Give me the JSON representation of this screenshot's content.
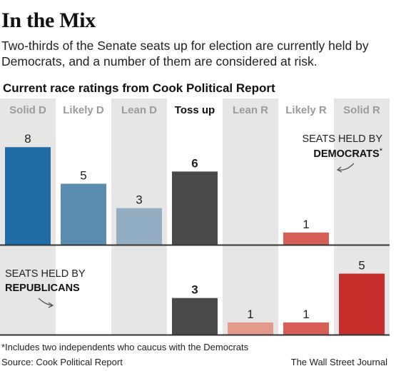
{
  "title": "In the Mix",
  "subtitle": "Two-thirds of the Senate seats up for election are currently held by Democrats, and a number of them are considered at risk.",
  "chart_heading": "Current race ratings from Cook Political Report",
  "footnote": "*Includes two independents who caucus with the Democrats",
  "source": "Source: Cook Political Report",
  "credit": "The Wall Street Journal",
  "chart_data": {
    "type": "bar",
    "categories": [
      "Solid D",
      "Likely D",
      "Lean D",
      "Toss up",
      "Lean R",
      "Likely R",
      "Solid R"
    ],
    "highlight_category": "Toss up",
    "series": [
      {
        "name": "SEATS HELD BY DEMOCRATS",
        "label_prefix": "SEATS HELD BY",
        "label_emphasis": "DEMOCRATS",
        "label_mark": "*",
        "values": [
          8,
          5,
          3,
          6,
          0,
          1,
          0
        ],
        "colors": [
          "#1f6ea8",
          "#5a8db0",
          "#93adc2",
          "#4a4a4a",
          null,
          "#d85f58",
          null
        ]
      },
      {
        "name": "SEATS HELD BY REPUBLICANS",
        "label_prefix": "SEATS HELD BY",
        "label_emphasis": "REPUBLICANS",
        "label_mark": "",
        "values": [
          0,
          0,
          0,
          3,
          1,
          1,
          5
        ],
        "colors": [
          null,
          null,
          null,
          "#4a4a4a",
          "#e39a8b",
          "#d85f58",
          "#c62f2c"
        ]
      }
    ],
    "colors": {
      "column_shade": "#e6e6e6",
      "label_gray": "#9a9a9a",
      "baseline": "#333333",
      "text": "#222222"
    }
  }
}
